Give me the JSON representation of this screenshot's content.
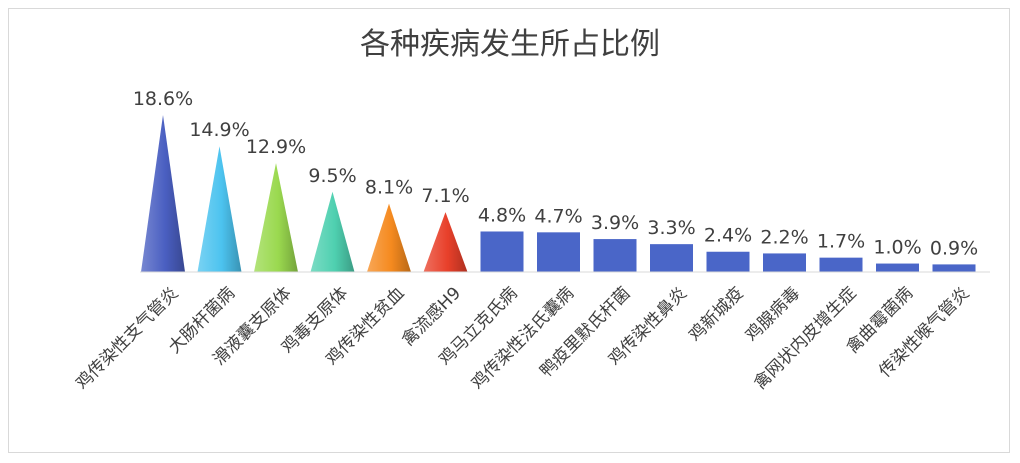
{
  "chart_data": {
    "type": "bar",
    "title": "各种疾病发生所占比例",
    "xlabel": "",
    "ylabel": "",
    "categories": [
      "鸡传染性支气管炎",
      "大肠杆菌病",
      "滑液囊支原体",
      "鸡毒支原体",
      "鸡传染性贫血",
      "禽流感H9",
      "鸡马立克氏病",
      "鸡传染性法氏囊病",
      "鸭疫里默氏杆菌",
      "鸡传染性鼻炎",
      "鸡新城疫",
      "鸡腺病毒",
      "禽网状内皮增生症",
      "禽曲霉菌病",
      "传染性喉气管炎"
    ],
    "values": [
      18.6,
      14.9,
      12.9,
      9.5,
      8.1,
      7.1,
      4.8,
      4.7,
      3.9,
      3.3,
      2.4,
      2.2,
      1.7,
      1.0,
      0.9
    ],
    "data_labels": [
      "18.6%",
      "14.9%",
      "12.9%",
      "9.5%",
      "8.1%",
      "7.1%",
      "4.8%",
      "4.7%",
      "3.9%",
      "3.3%",
      "2.4%",
      "2.2%",
      "1.7%",
      "1.0%",
      "0.9%"
    ],
    "ylim": [
      0,
      18.6
    ],
    "grid": false,
    "legend": "none",
    "mark_styles": [
      "cone",
      "cone",
      "cone",
      "cone",
      "cone",
      "cone",
      "rect",
      "rect",
      "rect",
      "rect",
      "rect",
      "rect",
      "rect",
      "rect",
      "rect"
    ],
    "colors": [
      "#4a5fc1",
      "#4cc3ef",
      "#9ad94f",
      "#4fd0b0",
      "#f58a1f",
      "#e8402a",
      "#4a66c8",
      "#4a66c8",
      "#4a66c8",
      "#4a66c8",
      "#4a66c8",
      "#4a66c8",
      "#4a66c8",
      "#4a66c8",
      "#4a66c8"
    ]
  }
}
